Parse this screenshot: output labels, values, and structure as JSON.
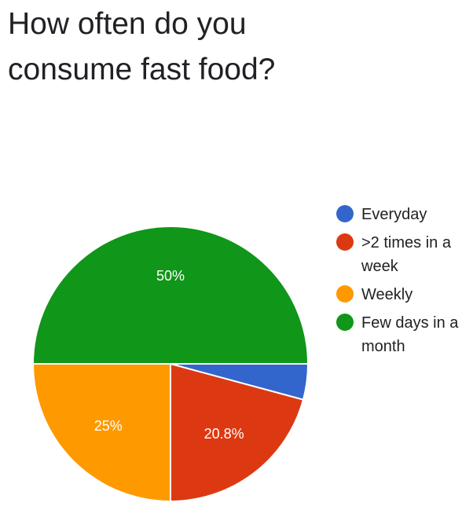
{
  "title": {
    "line1": "How often do you",
    "line2": "consume fast food?"
  },
  "chart_data": {
    "type": "pie",
    "title": "How often do you consume fast food?",
    "start": "3 o'clock, clockwise",
    "slices": [
      {
        "label": "Everyday",
        "value": 4.2,
        "color": "#3366cc",
        "data_label": ""
      },
      {
        "label": ">2 times in a week",
        "value": 20.8,
        "color": "#dc3912",
        "data_label": "20.8%"
      },
      {
        "label": "Weekly",
        "value": 25,
        "color": "#ff9900",
        "data_label": "25%"
      },
      {
        "label": "Few days in a month",
        "value": 50,
        "color": "#109618",
        "data_label": "50%"
      }
    ],
    "legend_position": "right"
  }
}
